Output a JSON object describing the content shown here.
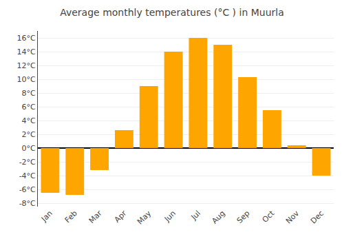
{
  "chart_data": {
    "type": "bar",
    "title": "Average monthly temperatures (°C ) in Muurla",
    "categories": [
      "Jan",
      "Feb",
      "Mar",
      "Apr",
      "May",
      "Jun",
      "Jul",
      "Aug",
      "Sep",
      "Oct",
      "Nov",
      "Dec"
    ],
    "values": [
      -6.5,
      -6.8,
      -3.2,
      2.6,
      9.0,
      14.0,
      16.0,
      15.0,
      10.3,
      5.5,
      0.4,
      -4.0
    ],
    "color": "#FFA500",
    "ylim": [
      -8.5,
      17
    ],
    "yticks": [
      {
        "value": -8,
        "label": "-8°C"
      },
      {
        "value": -6,
        "label": "-6°C"
      },
      {
        "value": -4,
        "label": "-4°C"
      },
      {
        "value": -2,
        "label": "-2°C"
      },
      {
        "value": 0,
        "label": "0°C"
      },
      {
        "value": 2,
        "label": "2°C"
      },
      {
        "value": 4,
        "label": "4°C"
      },
      {
        "value": 6,
        "label": "6°C"
      },
      {
        "value": 8,
        "label": "8°C"
      },
      {
        "value": 10,
        "label": "10°C"
      },
      {
        "value": 12,
        "label": "12°C"
      },
      {
        "value": 14,
        "label": "14°C"
      },
      {
        "value": 16,
        "label": "16°C"
      }
    ],
    "grid": true
  }
}
